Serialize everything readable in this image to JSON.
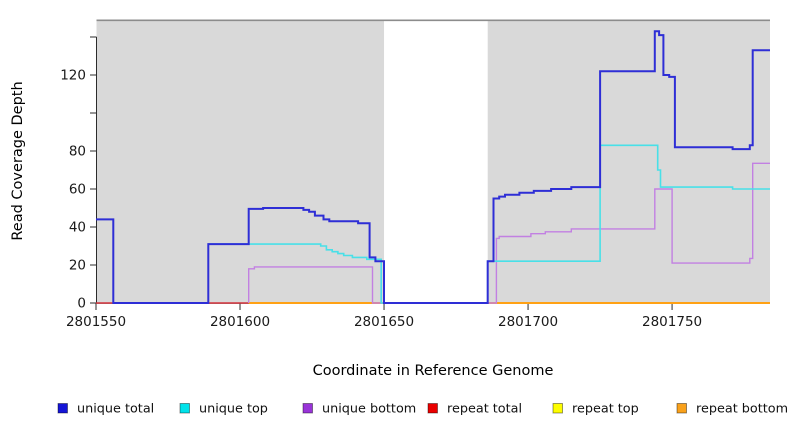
{
  "chart_data": {
    "type": "line",
    "subtype": "step",
    "title": "",
    "xlabel": "Coordinate in Reference Genome",
    "ylabel": "Read Coverage Depth",
    "xlim": [
      2801550,
      2801784
    ],
    "ylim": [
      0,
      149
    ],
    "grid": false,
    "plot_bg": "#d9d9d9",
    "outer_bg": "#ffffff",
    "top_border_color": "#8c8c8c",
    "axis_color": "#2b2b2b",
    "tick_label_color": "#1a1a1a",
    "masked_region": {
      "x0": 2801650,
      "x1": 2801686,
      "color": "#ffffff"
    },
    "x_ticks": [
      {
        "value": 2801550,
        "label": "2801550"
      },
      {
        "value": 2801600,
        "label": "2801600"
      },
      {
        "value": 2801650,
        "label": "2801650"
      },
      {
        "value": 2801700,
        "label": "2801700"
      },
      {
        "value": 2801750,
        "label": "2801750"
      }
    ],
    "y_ticks": [
      {
        "value": 0,
        "label": "0"
      },
      {
        "value": 20,
        "label": "20"
      },
      {
        "value": 40,
        "label": "40"
      },
      {
        "value": 60,
        "label": "60"
      },
      {
        "value": 80,
        "label": "80"
      },
      {
        "value": 100,
        "label": ""
      },
      {
        "value": 120,
        "label": "120"
      },
      {
        "value": 140,
        "label": ""
      }
    ],
    "legend_position": "bottom",
    "legend": [
      {
        "label": "unique total",
        "color": "#1515d6"
      },
      {
        "label": "unique top",
        "color": "#00e2ea"
      },
      {
        "label": "unique bottom",
        "color": "#9934d8"
      },
      {
        "label": "repeat total",
        "color": "#ea0000"
      },
      {
        "label": "repeat top",
        "color": "#fdfd00"
      },
      {
        "label": "repeat bottom",
        "color": "#f9a11b"
      }
    ],
    "series": [
      {
        "name": "repeat-top",
        "label": "repeat top",
        "color": "#fdfd00",
        "width": 1.4,
        "rise_start": false,
        "points": [
          [
            2801603,
            0
          ],
          [
            2801784,
            0
          ]
        ]
      },
      {
        "name": "repeat-total",
        "label": "repeat total",
        "color": "#d4323c",
        "width": 1.5,
        "rise_start": false,
        "points": [
          [
            2801550,
            0
          ],
          [
            2801784,
            0
          ]
        ]
      },
      {
        "name": "repeat-bottom",
        "label": "repeat bottom",
        "color": "#ffa114",
        "width": 2,
        "rise_start": false,
        "points": [
          [
            2801603,
            0
          ],
          [
            2801784,
            0
          ]
        ]
      },
      {
        "name": "unique-bottom",
        "label": "unique bottom",
        "color": "#c280e2",
        "width": 1.4,
        "rise_start": true,
        "points": [
          [
            2801603,
            18
          ],
          [
            2801605,
            19
          ],
          [
            2801646,
            0
          ],
          [
            2801689,
            34
          ],
          [
            2801690,
            35
          ],
          [
            2801701,
            36.5
          ],
          [
            2801706,
            37.5
          ],
          [
            2801715,
            39
          ],
          [
            2801744,
            60
          ],
          [
            2801750,
            21
          ],
          [
            2801777,
            23.5
          ],
          [
            2801778,
            73.5
          ],
          [
            2801784,
            73.5
          ]
        ]
      },
      {
        "name": "unique-top",
        "label": "unique top",
        "color": "#48e0e8",
        "width": 1.6,
        "rise_start": false,
        "points": [
          [
            2801589,
            31
          ],
          [
            2801628,
            30
          ],
          [
            2801630,
            28
          ],
          [
            2801632,
            27
          ],
          [
            2801634,
            26
          ],
          [
            2801636,
            25
          ],
          [
            2801639,
            24
          ],
          [
            2801644,
            23
          ],
          [
            2801649,
            0
          ],
          [
            2801686,
            22
          ],
          [
            2801725,
            83
          ],
          [
            2801745,
            70
          ],
          [
            2801746,
            61
          ],
          [
            2801771,
            60
          ],
          [
            2801784,
            60
          ]
        ]
      },
      {
        "name": "unique-total",
        "label": "unique total",
        "color": "#2e2ed6",
        "width": 2,
        "rise_start": false,
        "points": [
          [
            2801550,
            44
          ],
          [
            2801556,
            0
          ],
          [
            2801589,
            31
          ],
          [
            2801603,
            49.5
          ],
          [
            2801608,
            50
          ],
          [
            2801622,
            49
          ],
          [
            2801624,
            48
          ],
          [
            2801626,
            46
          ],
          [
            2801629,
            44
          ],
          [
            2801631,
            43
          ],
          [
            2801641,
            42
          ],
          [
            2801645,
            24
          ],
          [
            2801647,
            22
          ],
          [
            2801650,
            0
          ],
          [
            2801686,
            22
          ],
          [
            2801688,
            55
          ],
          [
            2801690,
            56
          ],
          [
            2801692,
            57
          ],
          [
            2801697,
            58
          ],
          [
            2801702,
            59
          ],
          [
            2801708,
            60
          ],
          [
            2801715,
            61
          ],
          [
            2801725,
            122
          ],
          [
            2801744,
            143
          ],
          [
            2801745.5,
            141
          ],
          [
            2801747,
            120
          ],
          [
            2801749,
            119
          ],
          [
            2801751,
            82
          ],
          [
            2801771,
            81
          ],
          [
            2801777,
            83
          ],
          [
            2801778,
            133
          ],
          [
            2801784,
            133
          ]
        ]
      }
    ]
  }
}
